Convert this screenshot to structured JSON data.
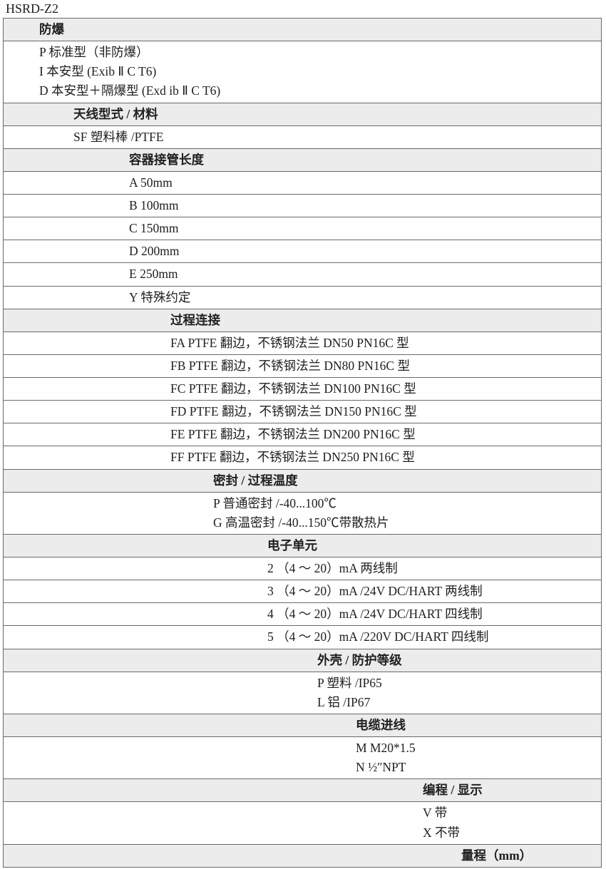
{
  "model": "HSRD-Z2",
  "sections": [
    {
      "hdr_cls": "w1",
      "hdr": "防爆",
      "items_cls": "w1",
      "items": [
        "P 标准型（非防爆）",
        "I 本安型 (Exib Ⅱ C T6)",
        "D 本安型＋隔爆型 (Exd ib Ⅱ C T6)"
      ]
    },
    {
      "hdr_cls": "w2",
      "hdr": "天线型式 / 材料",
      "items_cls": "w2",
      "items": [
        "SF 塑料棒 /PTFE"
      ]
    },
    {
      "hdr_cls": "w3",
      "hdr": "容器接管长度",
      "items_cls": "w3",
      "items": [
        "A 50mm",
        "B 100mm",
        "C 150mm",
        "D 200mm",
        "E 250mm",
        "Y 特殊约定"
      ]
    },
    {
      "hdr_cls": "w4",
      "hdr": "过程连接",
      "items_cls": "w4",
      "items": [
        "FA PTFE 翻边，不锈钢法兰 DN50 PN16C 型",
        "FB PTFE 翻边，不锈钢法兰 DN80 PN16C 型",
        "FC PTFE 翻边，不锈钢法兰 DN100 PN16C 型",
        "FD PTFE 翻边，不锈钢法兰 DN150 PN16C 型",
        "FE PTFE 翻边，不锈钢法兰 DN200 PN16C 型",
        "FF PTFE 翻边，不锈钢法兰 DN250 PN16C 型"
      ]
    },
    {
      "hdr_cls": "w5",
      "hdr": "密封 / 过程温度",
      "items_cls": "w5",
      "items": [
        "P 普通密封 /-40...100℃",
        "G 高温密封 /-40...150℃带散热片"
      ]
    },
    {
      "hdr_cls": "w6",
      "hdr": "电子单元",
      "items_cls": "w6",
      "items": [
        "2 （4 ～ 20）mA 两线制",
        "3 （4 ～ 20）mA /24V DC/HART 两线制",
        "4 （4 ～ 20）mA /24V DC/HART 四线制",
        "5 （4 ～ 20）mA /220V DC/HART 四线制"
      ]
    },
    {
      "hdr_cls": "w7",
      "hdr": "外壳 / 防护等级",
      "items_cls": "w7",
      "items": [
        "P 塑料 /IP65",
        "L 铝 /IP67"
      ]
    },
    {
      "hdr_cls": "w8",
      "hdr": "电缆进线",
      "items_cls": "w8",
      "items": [
        "M  M20*1.5",
        "N ½″NPT"
      ]
    },
    {
      "hdr_cls": "w9",
      "hdr": "编程 / 显示",
      "items_cls": "w9",
      "items": [
        "V 带",
        "X 不带"
      ]
    },
    {
      "hdr_cls": "w10",
      "hdr": "量程（mm）"
    }
  ]
}
